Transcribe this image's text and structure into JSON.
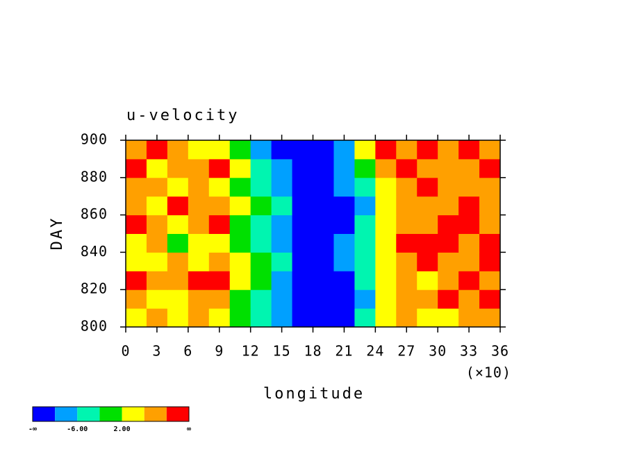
{
  "chart_data": {
    "type": "filled-contour",
    "title": "u-velocity",
    "x_label": "longitude",
    "y_label": "DAY",
    "x_multiplier": "(×10)",
    "xlim": [
      0,
      360
    ],
    "ylim": [
      800,
      900
    ],
    "xticks": [
      {
        "value": 0,
        "label": "0"
      },
      {
        "value": 30,
        "label": "3"
      },
      {
        "value": 60,
        "label": "6"
      },
      {
        "value": 90,
        "label": "9"
      },
      {
        "value": 120,
        "label": "12"
      },
      {
        "value": 150,
        "label": "15"
      },
      {
        "value": 180,
        "label": "18"
      },
      {
        "value": 210,
        "label": "21"
      },
      {
        "value": 240,
        "label": "24"
      },
      {
        "value": 270,
        "label": "27"
      },
      {
        "value": 300,
        "label": "30"
      },
      {
        "value": 330,
        "label": "33"
      },
      {
        "value": 360,
        "label": "36"
      }
    ],
    "yticks": [
      800,
      820,
      840,
      860,
      880,
      900
    ],
    "x": [
      10,
      30,
      50,
      70,
      90,
      110,
      130,
      150,
      170,
      190,
      210,
      230,
      250,
      270,
      290,
      310,
      330,
      350
    ],
    "y": [
      805,
      815,
      825,
      835,
      845,
      855,
      865,
      875,
      885,
      895
    ],
    "z": [
      [
        4,
        8,
        3,
        6,
        2,
        0,
        -4,
        -8,
        -12,
        -13,
        -12,
        -6,
        4,
        8,
        5,
        3,
        9,
        6
      ],
      [
        8,
        3,
        5,
        9,
        6,
        0,
        -3,
        -9,
        -13,
        -14,
        -12,
        -7,
        3,
        7,
        9,
        12,
        8,
        11
      ],
      [
        11,
        6,
        9,
        12,
        11,
        2,
        -2,
        -7,
        -12,
        -13,
        -11,
        -5,
        2,
        6,
        4,
        8,
        11,
        7
      ],
      [
        5,
        3,
        6,
        4,
        7,
        3,
        -1,
        -5,
        -11,
        -12,
        -9,
        -3,
        5,
        8,
        11,
        9,
        6,
        10
      ],
      [
        2,
        6,
        1,
        4,
        2,
        -1,
        -4,
        -9,
        -14,
        -13,
        -10,
        -4,
        3,
        12,
        13,
        11,
        7,
        12
      ],
      [
        12,
        9,
        5,
        8,
        11,
        0,
        -3,
        -8,
        -13,
        -14,
        -12,
        -6,
        4,
        6,
        9,
        13,
        10,
        8
      ],
      [
        7,
        4,
        10,
        6,
        8,
        3,
        -2,
        -6,
        -12,
        -13,
        -11,
        -7,
        2,
        9,
        6,
        8,
        12,
        7
      ],
      [
        9,
        7,
        3,
        9,
        5,
        -1,
        -5,
        -8,
        -11,
        -12,
        -9,
        -4,
        5,
        7,
        11,
        6,
        9,
        8
      ],
      [
        12,
        5,
        8,
        6,
        11,
        4,
        -4,
        -10,
        -13,
        -12,
        -8,
        -2,
        8,
        10,
        6,
        9,
        7,
        12
      ],
      [
        9,
        11,
        6,
        4,
        3,
        -2,
        -7,
        -11,
        -12,
        -13,
        -9,
        3,
        11,
        8,
        12,
        7,
        10,
        6
      ]
    ],
    "levels": [
      -10,
      -6,
      -2,
      2,
      6,
      10
    ],
    "colors": [
      "#0000ff",
      "#00a0ff",
      "#00f5b0",
      "#00e000",
      "#ffff00",
      "#ffa000",
      "#ff0000"
    ],
    "colorbar_ticks": [
      {
        "value": null,
        "label": "-∞"
      },
      {
        "value": -6,
        "label": "-6.00"
      },
      {
        "value": 2,
        "label": "2.00"
      },
      {
        "value": null,
        "label": "∞"
      }
    ]
  }
}
